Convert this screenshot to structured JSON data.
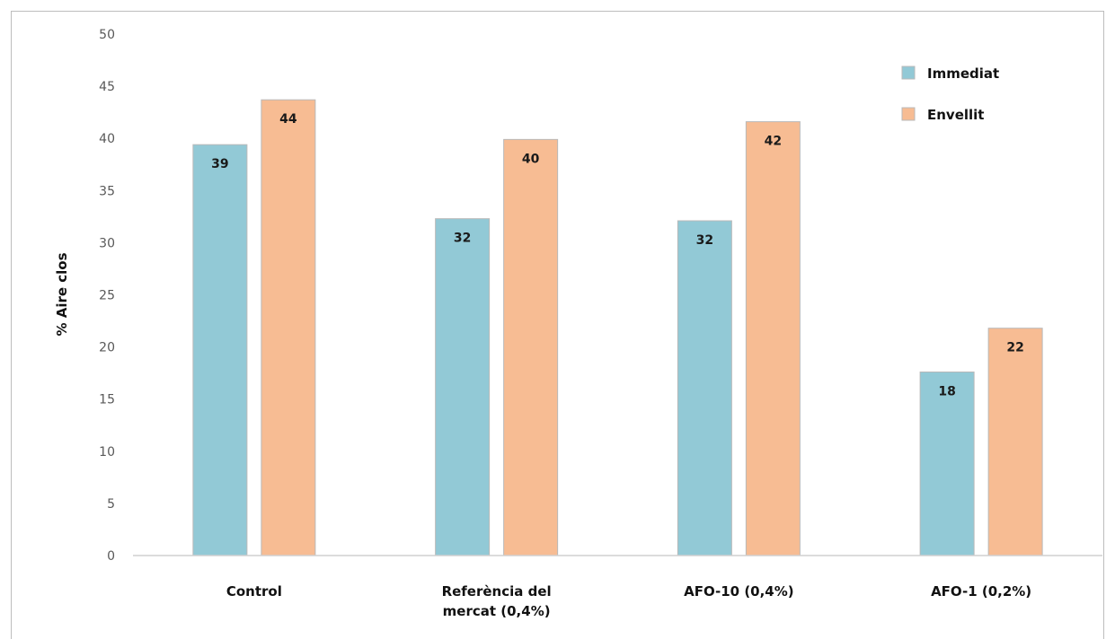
{
  "chart_data": {
    "type": "bar",
    "title": "",
    "xlabel": "",
    "ylabel": "% Aire clos",
    "ylim": [
      0,
      50
    ],
    "yticks": [
      0,
      5,
      10,
      15,
      20,
      25,
      30,
      35,
      40,
      45,
      50
    ],
    "grid": false,
    "legend_position": "top-right",
    "categories": [
      [
        "Control"
      ],
      [
        "Referència del",
        "mercat (0,4%)"
      ],
      [
        "AFO-10 (0,4%)"
      ],
      [
        "AFO-1 (0,2%)"
      ]
    ],
    "series": [
      {
        "name": "Immediat",
        "color": "#92c9d6",
        "values": [
          39.4,
          32.3,
          32.1,
          17.6
        ],
        "labels": [
          "39",
          "32",
          "32",
          "18"
        ]
      },
      {
        "name": "Envellit",
        "color": "#f7bc93",
        "values": [
          43.7,
          39.9,
          41.6,
          21.8
        ],
        "labels": [
          "44",
          "40",
          "42",
          "22"
        ]
      }
    ]
  }
}
